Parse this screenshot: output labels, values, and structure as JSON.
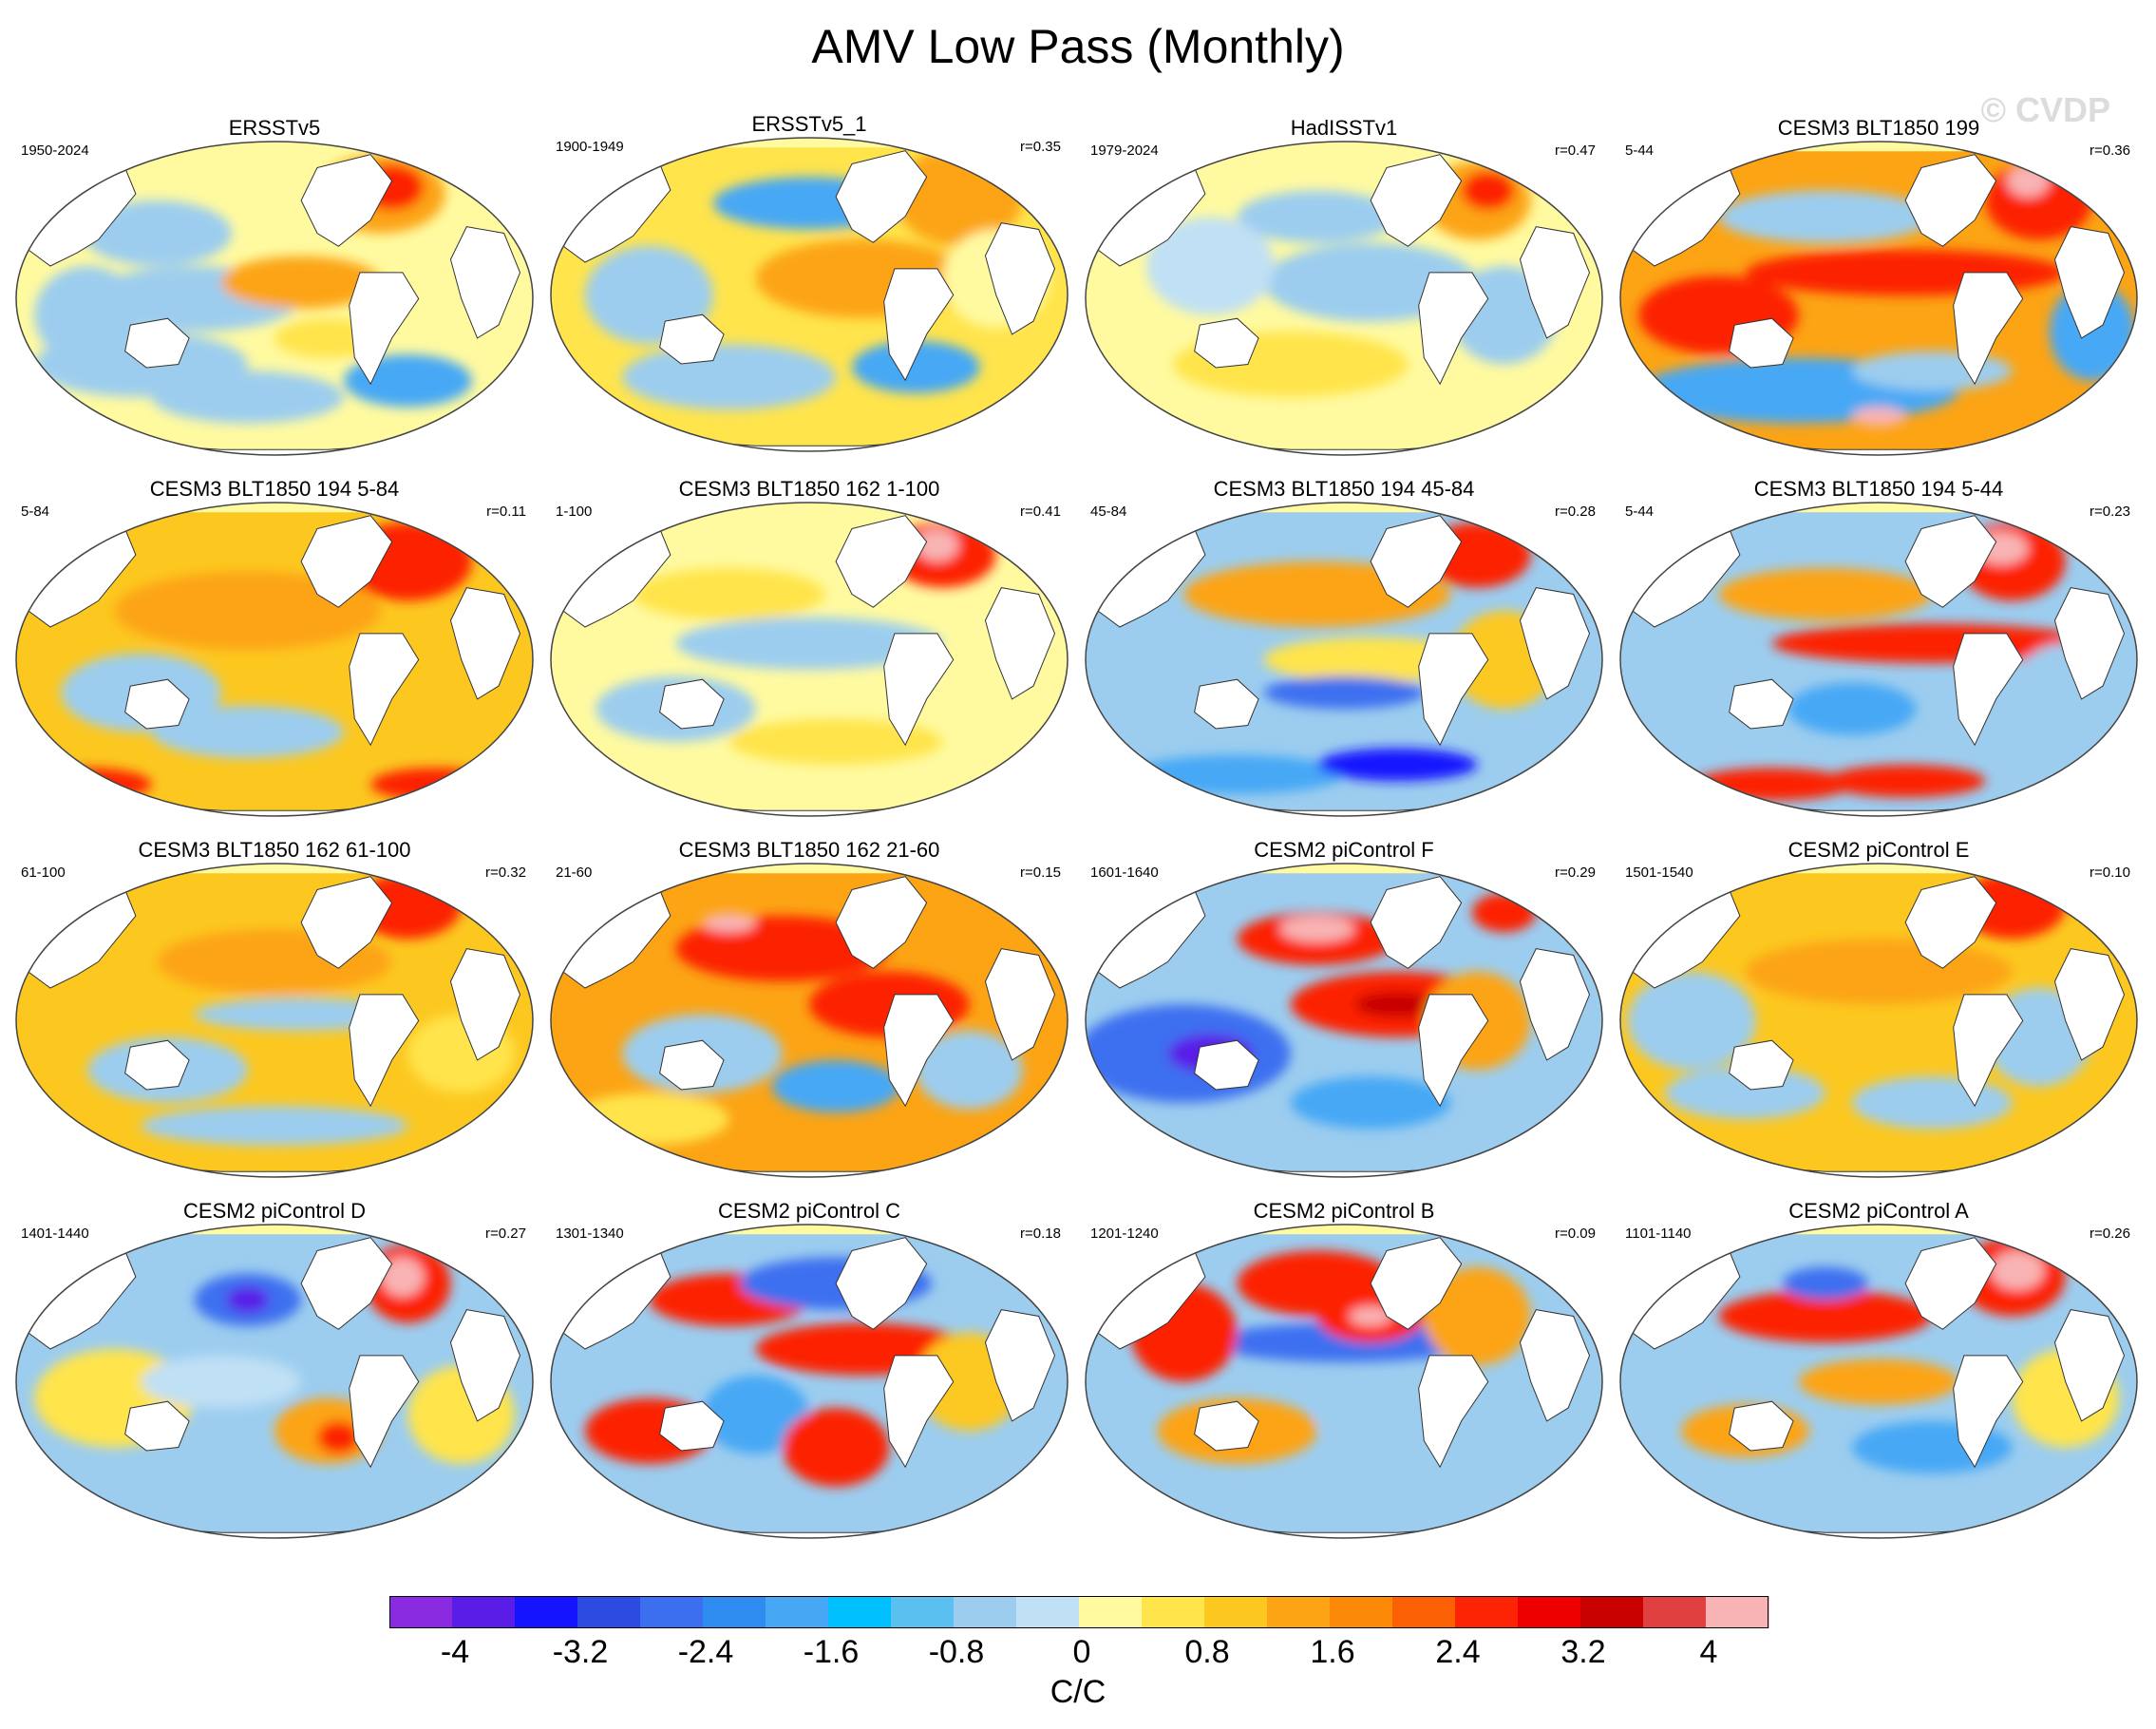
{
  "title": "AMV Low Pass (Monthly)",
  "watermark": "© CVDP",
  "units": "C/C",
  "colorbar": {
    "colors": [
      "#8a2be2",
      "#5a1de8",
      "#1414ff",
      "#2c4be0",
      "#3c6ff0",
      "#2e8cf0",
      "#46a8f5",
      "#00bfff",
      "#5ac0ef",
      "#9ccdef",
      "#c0e0f5",
      "#fffaa0",
      "#ffe44c",
      "#fcc820",
      "#fca414",
      "#fc8a08",
      "#fc6004",
      "#fc2404",
      "#ee0000",
      "#c80000",
      "#e04040",
      "#f8b4b4"
    ],
    "tick_labels": [
      "-4",
      "-3.2",
      "-2.4",
      "-1.6",
      "-0.8",
      "0",
      "0.8",
      "1.6",
      "2.4",
      "3.2",
      "4"
    ]
  },
  "panels": [
    {
      "title": "ERSSTv5",
      "years": "1950-2024",
      "r": "",
      "pattern": "ersst5"
    },
    {
      "title": "ERSSTv5_1",
      "years": "1900-1949",
      "r": "r=0.35",
      "pattern": "ersst5_1"
    },
    {
      "title": "HadISSTv1",
      "years": "1979-2024",
      "r": "r=0.47",
      "pattern": "hadisst"
    },
    {
      "title": "CESM3 BLT1850 199",
      "years": "5-44",
      "r": "r=0.36",
      "pattern": "b199"
    },
    {
      "title": "CESM3 BLT1850 194 5-84",
      "years": "5-84",
      "r": "r=0.11",
      "pattern": "b194a"
    },
    {
      "title": "CESM3 BLT1850 162 1-100",
      "years": "1-100",
      "r": "r=0.41",
      "pattern": "b162a"
    },
    {
      "title": "CESM3 BLT1850 194 45-84",
      "years": "45-84",
      "r": "r=0.28",
      "pattern": "b194b"
    },
    {
      "title": "CESM3 BLT1850 194 5-44",
      "years": "5-44",
      "r": "r=0.23",
      "pattern": "b194c"
    },
    {
      "title": "CESM3 BLT1850 162 61-100",
      "years": "61-100",
      "r": "r=0.32",
      "pattern": "b162b"
    },
    {
      "title": "CESM3 BLT1850 162 21-60",
      "years": "21-60",
      "r": "r=0.15",
      "pattern": "b162c"
    },
    {
      "title": "CESM2 piControl F",
      "years": "1601-1640",
      "r": "r=0.29",
      "pattern": "picF"
    },
    {
      "title": "CESM2 piControl E",
      "years": "1501-1540",
      "r": "r=0.10",
      "pattern": "picE"
    },
    {
      "title": "CESM2 piControl D",
      "years": "1401-1440",
      "r": "r=0.27",
      "pattern": "picD"
    },
    {
      "title": "CESM2 piControl C",
      "years": "1301-1340",
      "r": "r=0.18",
      "pattern": "picC"
    },
    {
      "title": "CESM2 piControl B",
      "years": "1201-1240",
      "r": "r=0.09",
      "pattern": "picB"
    },
    {
      "title": "CESM2 piControl A",
      "years": "1101-1140",
      "r": "r=0.26",
      "pattern": "picA"
    }
  ]
}
